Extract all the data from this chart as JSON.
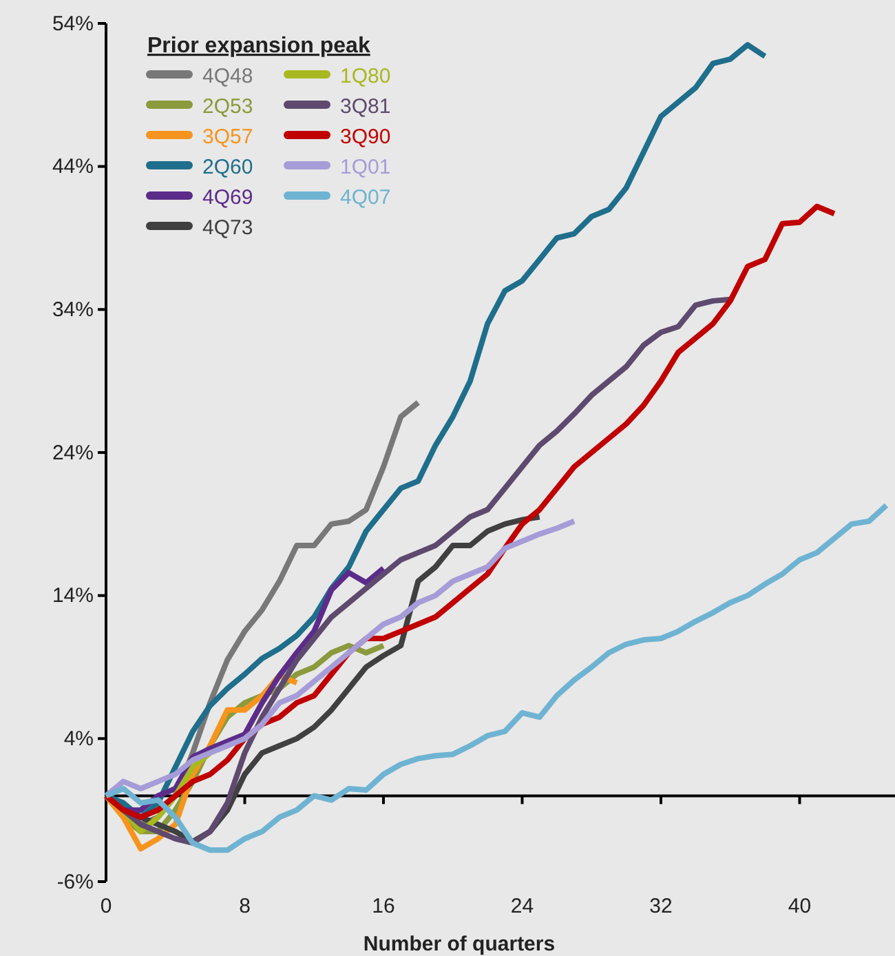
{
  "chart_data": {
    "type": "line",
    "xlabel": "Number of quarters",
    "legend_title": "Prior expansion peak",
    "legend": "top left",
    "grid": false,
    "marker": "none",
    "line_style": "solid",
    "x": [
      0,
      1,
      2,
      3,
      4,
      5,
      6,
      7,
      8,
      9,
      10,
      11,
      12,
      13,
      14,
      15,
      16,
      17,
      18,
      19,
      20,
      21,
      22,
      23,
      24,
      25,
      26,
      27,
      28,
      29,
      30,
      31,
      32,
      33,
      34,
      35,
      36,
      37,
      38,
      39,
      40,
      41,
      42,
      43,
      44,
      45
    ],
    "xlim": [
      0,
      45.5
    ],
    "xticks": [
      0,
      8,
      16,
      24,
      32,
      40
    ],
    "ylim": [
      -6,
      54
    ],
    "yticks": [
      {
        "value": -6,
        "label": "-6%"
      },
      {
        "value": 4,
        "label": "4%"
      },
      {
        "value": 14,
        "label": "14%"
      },
      {
        "value": 24,
        "label": "24%"
      },
      {
        "value": 34,
        "label": "34%"
      },
      {
        "value": 44,
        "label": "44%"
      },
      {
        "value": 54,
        "label": "54%"
      }
    ],
    "series": [
      {
        "name": "4Q48",
        "color": "#787878",
        "values": [
          0,
          -1,
          -2,
          -1.5,
          0,
          3,
          6.5,
          9.5,
          11.5,
          13,
          15,
          17.5,
          17.5,
          19,
          19.2,
          20,
          23,
          26.5,
          27.5,
          null,
          null,
          null,
          null,
          null,
          null,
          null,
          null,
          null,
          null,
          null,
          null,
          null,
          null,
          null,
          null,
          null,
          null,
          null,
          null,
          null,
          null,
          null,
          null,
          null,
          null,
          null
        ]
      },
      {
        "name": "2Q53",
        "color": "#8a9a3c",
        "values": [
          0,
          -1.5,
          -2.5,
          -2.5,
          -1,
          1,
          3.5,
          5.5,
          6.5,
          7,
          7.5,
          8.5,
          9,
          10,
          10.5,
          10,
          10.5,
          null,
          null,
          null,
          null,
          null,
          null,
          null,
          null,
          null,
          null,
          null,
          null,
          null,
          null,
          null,
          null,
          null,
          null,
          null,
          null,
          null,
          null,
          null,
          null,
          null,
          null,
          null,
          null,
          null
        ]
      },
      {
        "name": "3Q57",
        "color": "#f7941d",
        "values": [
          0,
          -1.5,
          -3.7,
          -3,
          -2,
          1.5,
          3.5,
          6,
          6,
          7,
          8.4,
          7.9,
          null,
          null,
          null,
          null,
          null,
          null,
          null,
          null,
          null,
          null,
          null,
          null,
          null,
          null,
          null,
          null,
          null,
          null,
          null,
          null,
          null,
          null,
          null,
          null,
          null,
          null,
          null,
          null,
          null,
          null,
          null,
          null,
          null,
          null
        ]
      },
      {
        "name": "2Q60",
        "color": "#1f6e8c",
        "values": [
          0,
          -0.5,
          -1.5,
          -0.5,
          2,
          4.5,
          6.3,
          7.5,
          8.5,
          9.6,
          10.3,
          11.2,
          12.5,
          14.5,
          16,
          18.5,
          20,
          21.5,
          22,
          24.5,
          26.5,
          29,
          33,
          35.3,
          36,
          37.5,
          39,
          39.3,
          40.5,
          41,
          42.5,
          45,
          47.5,
          48.5,
          49.5,
          51.2,
          51.5,
          52.5,
          51.7,
          null,
          null,
          null,
          null,
          null,
          null,
          null
        ]
      },
      {
        "name": "4Q69",
        "color": "#5b2c8a",
        "values": [
          0,
          -1,
          -1,
          0,
          0.5,
          2.7,
          3.3,
          3.8,
          4.3,
          6.5,
          8.4,
          10,
          11.5,
          14.4,
          15.6,
          14.9,
          15.9,
          null,
          null,
          null,
          null,
          null,
          null,
          null,
          null,
          null,
          null,
          null,
          null,
          null,
          null,
          null,
          null,
          null,
          null,
          null,
          null,
          null,
          null,
          null,
          null,
          null,
          null,
          null,
          null,
          null
        ]
      },
      {
        "name": "4Q73",
        "color": "#404040",
        "values": [
          0,
          -1,
          -1.5,
          -2,
          -2.5,
          -3.2,
          -2.5,
          -1,
          1.5,
          3,
          3.5,
          4,
          4.8,
          6,
          7.5,
          9,
          9.8,
          10.5,
          15,
          16,
          17.5,
          17.5,
          18.5,
          19,
          19.3,
          19.5,
          null,
          null,
          null,
          null,
          null,
          null,
          null,
          null,
          null,
          null,
          null,
          null,
          null,
          null,
          null,
          null,
          null,
          null,
          null,
          null
        ]
      },
      {
        "name": "1Q80",
        "color": "#a8b820",
        "values": [
          0,
          -1,
          -2.5,
          -1.5,
          0,
          2,
          3,
          null,
          null,
          null,
          null,
          null,
          null,
          null,
          null,
          null,
          null,
          null,
          null,
          null,
          null,
          null,
          null,
          null,
          null,
          null,
          null,
          null,
          null,
          null,
          null,
          null,
          null,
          null,
          null,
          null,
          null,
          null,
          null,
          null,
          null,
          null,
          null,
          null,
          null,
          null
        ]
      },
      {
        "name": "3Q81",
        "color": "#5e4a6e",
        "values": [
          0,
          -1,
          -2,
          -2.5,
          -3,
          -3.3,
          -2.5,
          -0.5,
          3,
          5.5,
          7.5,
          9.5,
          11,
          12.5,
          13.5,
          14.5,
          15.5,
          16.5,
          17,
          17.5,
          18.5,
          19.5,
          20,
          21.5,
          23,
          24.5,
          25.5,
          26.7,
          28,
          29,
          30,
          31.5,
          32.4,
          32.8,
          34.3,
          34.6,
          34.7,
          null,
          null,
          null,
          null,
          null,
          null,
          null,
          null,
          null
        ]
      },
      {
        "name": "3Q90",
        "color": "#c00000",
        "values": [
          0,
          -1,
          -1.5,
          -1,
          0,
          1,
          1.5,
          2.5,
          4,
          5,
          5.5,
          6.5,
          7,
          8.5,
          10,
          11,
          11,
          11.5,
          12,
          12.5,
          13.5,
          14.5,
          15.5,
          17.3,
          19,
          20,
          21.5,
          23,
          24,
          25,
          26,
          27.3,
          29,
          31,
          32,
          33,
          34.6,
          37,
          37.5,
          40,
          40.1,
          41.2,
          40.7,
          null,
          null,
          null
        ]
      },
      {
        "name": "1Q01",
        "color": "#a69cd8",
        "values": [
          0,
          1,
          0.5,
          1,
          1.5,
          2.5,
          3,
          3.5,
          4,
          5,
          6.5,
          7,
          8,
          9,
          10,
          11,
          12,
          12.5,
          13.5,
          14,
          15,
          15.5,
          16,
          17.3,
          17.8,
          18.3,
          18.7,
          19.2,
          null,
          null,
          null,
          null,
          null,
          null,
          null,
          null,
          null,
          null,
          null,
          null,
          null,
          null,
          null,
          null,
          null,
          null
        ]
      },
      {
        "name": "4Q07",
        "color": "#6fb3d2",
        "values": [
          0,
          0.5,
          -0.5,
          -0.3,
          -1.5,
          -3.3,
          -3.8,
          -3.8,
          -3,
          -2.5,
          -1.5,
          -1,
          0,
          -0.3,
          0.5,
          0.4,
          1.5,
          2.2,
          2.6,
          2.8,
          2.9,
          3.5,
          4.2,
          4.5,
          5.8,
          5.5,
          7,
          8.1,
          9,
          10,
          10.6,
          10.9,
          11,
          11.5,
          12.2,
          12.8,
          13.5,
          14,
          14.8,
          15.5,
          16.5,
          17,
          18,
          19,
          19.2,
          20.3
        ]
      }
    ]
  }
}
